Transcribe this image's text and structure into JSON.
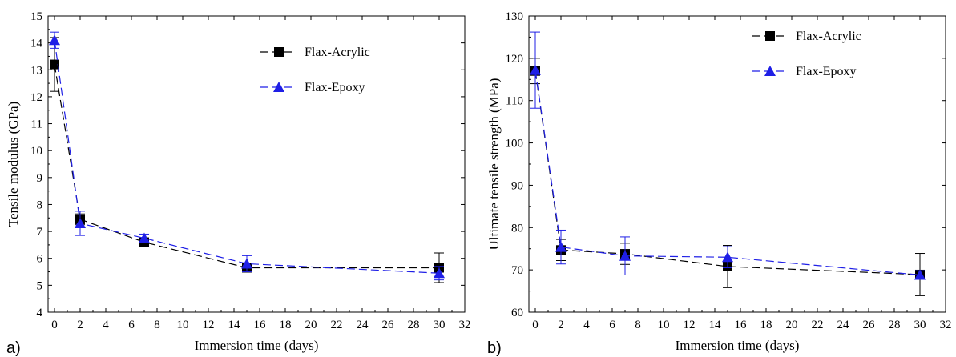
{
  "colors": {
    "acrylic": "#000000",
    "epoxy": "#1f1fe6",
    "axis": "#000000"
  },
  "chart_data": [
    {
      "type": "line",
      "panel_label": "a)",
      "xlabel": "Immersion time (days)",
      "ylabel": "Tensile modulus (GPa)",
      "xlim": [
        -0.5,
        32
      ],
      "ylim": [
        4,
        15
      ],
      "xticks": [
        0,
        2,
        4,
        6,
        8,
        10,
        12,
        14,
        16,
        18,
        20,
        22,
        24,
        26,
        28,
        30,
        32
      ],
      "yticks": [
        4,
        5,
        6,
        7,
        8,
        9,
        10,
        11,
        12,
        13,
        14,
        15
      ],
      "grid": false,
      "legend_position": "top-right",
      "series": [
        {
          "name": "Flax-Acrylic",
          "marker": "square",
          "color_key": "acrylic",
          "x": [
            0,
            2,
            7,
            15,
            30
          ],
          "y": [
            13.2,
            7.45,
            6.6,
            5.65,
            5.65
          ],
          "err": [
            1.0,
            0.2,
            0.15,
            0.15,
            0.55
          ]
        },
        {
          "name": "Flax-Epoxy",
          "marker": "triangle",
          "color_key": "epoxy",
          "x": [
            0,
            2,
            7,
            15,
            30
          ],
          "y": [
            14.1,
            7.3,
            6.75,
            5.8,
            5.45
          ],
          "err": [
            0.3,
            0.45,
            0.15,
            0.3,
            0.25
          ]
        }
      ]
    },
    {
      "type": "line",
      "panel_label": "b)",
      "xlabel": "Immersion time (days)",
      "ylabel": "Ultimate tensile strength (MPa)",
      "xlim": [
        -0.5,
        32
      ],
      "ylim": [
        60,
        130
      ],
      "xticks": [
        0,
        2,
        4,
        6,
        8,
        10,
        12,
        14,
        16,
        18,
        20,
        22,
        24,
        26,
        28,
        30,
        32
      ],
      "yticks": [
        60,
        70,
        80,
        90,
        100,
        110,
        120,
        130
      ],
      "grid": false,
      "legend_position": "top-right",
      "series": [
        {
          "name": "Flax-Acrylic",
          "marker": "square",
          "color_key": "acrylic",
          "x": [
            0,
            2,
            7,
            15,
            30
          ],
          "y": [
            117,
            74.7,
            73.8,
            70.8,
            68.9
          ],
          "err": [
            3,
            2.5,
            2.5,
            5,
            5
          ]
        },
        {
          "name": "Flax-Epoxy",
          "marker": "triangle",
          "color_key": "epoxy",
          "x": [
            0,
            2,
            7,
            15,
            30
          ],
          "y": [
            117.2,
            75.4,
            73.3,
            73.0,
            68.8
          ],
          "err": [
            9,
            4,
            4.5,
            2.5,
            1
          ]
        }
      ]
    }
  ]
}
